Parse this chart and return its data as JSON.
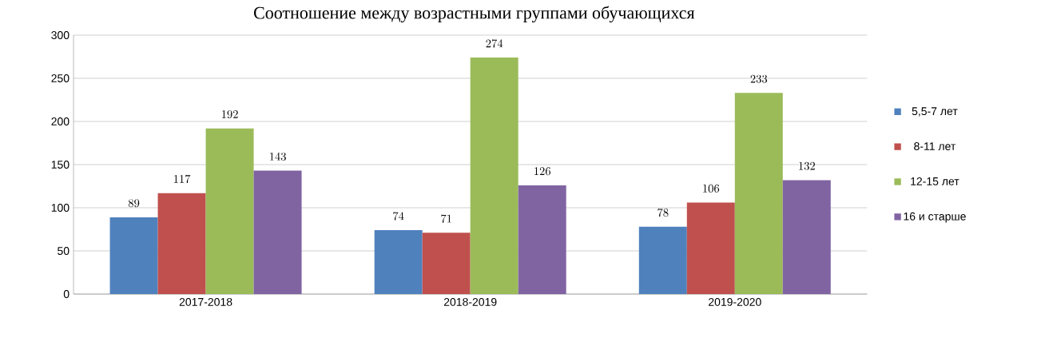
{
  "chart_data": {
    "type": "bar",
    "title": "Соотношение между возрастными группами обучающихся",
    "categories": [
      "2017-2018",
      "2018-2019",
      "2019-2020"
    ],
    "series": [
      {
        "name": "5,5-7 лет",
        "color": "#4f81bd",
        "values": [
          89,
          74,
          78
        ]
      },
      {
        "name": "8-11 лет",
        "color": "#c0504d",
        "values": [
          117,
          71,
          106
        ]
      },
      {
        "name": "12-15 лет",
        "color": "#9bbb59",
        "values": [
          192,
          274,
          233
        ]
      },
      {
        "name": "16 и старше",
        "color": "#8064a2",
        "values": [
          143,
          126,
          132
        ]
      }
    ],
    "ylim": [
      0,
      300
    ],
    "yticks": [
      0,
      50,
      100,
      150,
      200,
      250,
      300
    ],
    "grid": "y",
    "legend": "right",
    "data_labels": true
  }
}
